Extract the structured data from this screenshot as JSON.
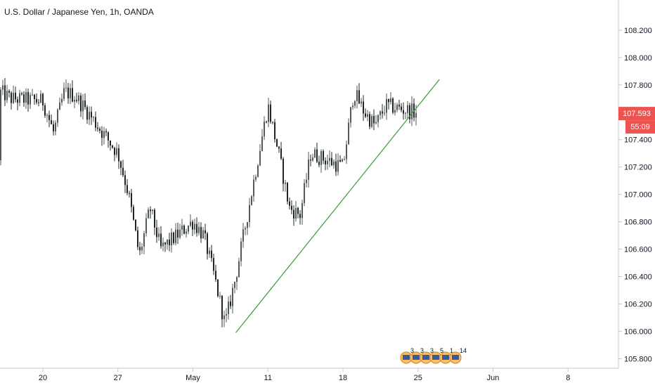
{
  "header": {
    "symbol_title": "U.S. Dollar / Japanese Yen, 1h, OANDA"
  },
  "price_tag": {
    "price": "107.593",
    "countdown": "55:09",
    "color": "#ef5350"
  },
  "colors": {
    "up_candle": "#505a58",
    "down_candle": "#202424",
    "trendline": "#3a9b3a",
    "axis_border": "#c8c9cc",
    "label": "#131722"
  },
  "events": {
    "counts": [
      "3",
      "3",
      "3",
      "5",
      "1",
      "14"
    ]
  },
  "chart_data": {
    "type": "candlestick",
    "title": "U.S. Dollar / Japanese Yen, 1h, OANDA",
    "interval": "1h",
    "y_ticks": [
      "105.800",
      "106.000",
      "106.200",
      "106.400",
      "106.600",
      "106.800",
      "107.000",
      "107.200",
      "107.400",
      "107.600",
      "107.800",
      "108.000",
      "108.200"
    ],
    "x_ticks": [
      "20",
      "27",
      "May",
      "11",
      "18",
      "25",
      "Jun",
      "8"
    ],
    "ylim": [
      105.73,
      108.42
    ],
    "last_price": 107.593,
    "price_path": [
      {
        "x": "Apr 15",
        "close": 107.25
      },
      {
        "x": "Apr 16",
        "close": 107.75
      },
      {
        "x": "Apr 17",
        "close": 107.7
      },
      {
        "x": "Apr 20",
        "close": 107.68
      },
      {
        "x": "Apr 21",
        "close": 107.45
      },
      {
        "x": "Apr 22",
        "close": 107.75
      },
      {
        "x": "Apr 23",
        "close": 107.72
      },
      {
        "x": "Apr 24",
        "close": 107.62
      },
      {
        "x": "Apr 27",
        "close": 107.3
      },
      {
        "x": "Apr 28",
        "close": 107.0
      },
      {
        "x": "Apr 29",
        "close": 106.55
      },
      {
        "x": "Apr 30",
        "close": 106.9
      },
      {
        "x": "May 1",
        "close": 106.6
      },
      {
        "x": "May 4",
        "close": 106.8
      },
      {
        "x": "May 5",
        "close": 106.7
      },
      {
        "x": "May 6",
        "close": 106.4
      },
      {
        "x": "May 7",
        "close": 106.05
      },
      {
        "x": "May 8",
        "close": 106.4
      },
      {
        "x": "May 11",
        "close": 107.65
      },
      {
        "x": "May 12",
        "close": 107.3
      },
      {
        "x": "May 13",
        "close": 106.9
      },
      {
        "x": "May 14",
        "close": 106.85
      },
      {
        "x": "May 15",
        "close": 107.3
      },
      {
        "x": "May 18",
        "close": 107.2
      },
      {
        "x": "May 19",
        "close": 107.75
      },
      {
        "x": "May 20",
        "close": 107.6
      },
      {
        "x": "May 21",
        "close": 107.5
      },
      {
        "x": "May 22",
        "close": 107.65
      },
      {
        "x": "May 25",
        "close": 107.593
      }
    ],
    "trendline": {
      "from": {
        "x": "May 8",
        "y": 105.99
      },
      "to": {
        "x": "May 27",
        "y": 107.84
      }
    }
  }
}
